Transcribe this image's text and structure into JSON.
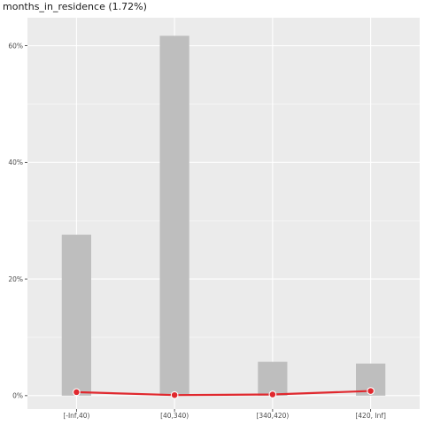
{
  "chart_data": {
    "type": "bar",
    "title": "months_in_residence (1.72%)",
    "categories": [
      "[-Inf,40)",
      "[40,340)",
      "[340,420)",
      "[420, Inf]"
    ],
    "series": [
      {
        "type": "bar",
        "values": [
          0.276,
          0.617,
          0.058,
          0.055
        ]
      },
      {
        "type": "line",
        "values": [
          0.006,
          0.001,
          0.002,
          0.008
        ]
      }
    ],
    "ylim": [
      -0.023,
      0.648
    ],
    "yticks": [
      0,
      0.2,
      0.4,
      0.6
    ],
    "ytick_labels": [
      "0%",
      "20%",
      "40%",
      "60%"
    ],
    "grid": true,
    "colors": {
      "bar": "#bebebe",
      "line": "#e0282e",
      "point_edge": "#ffffff",
      "panel": "#ebebeb",
      "grid": "#ffffff"
    }
  }
}
